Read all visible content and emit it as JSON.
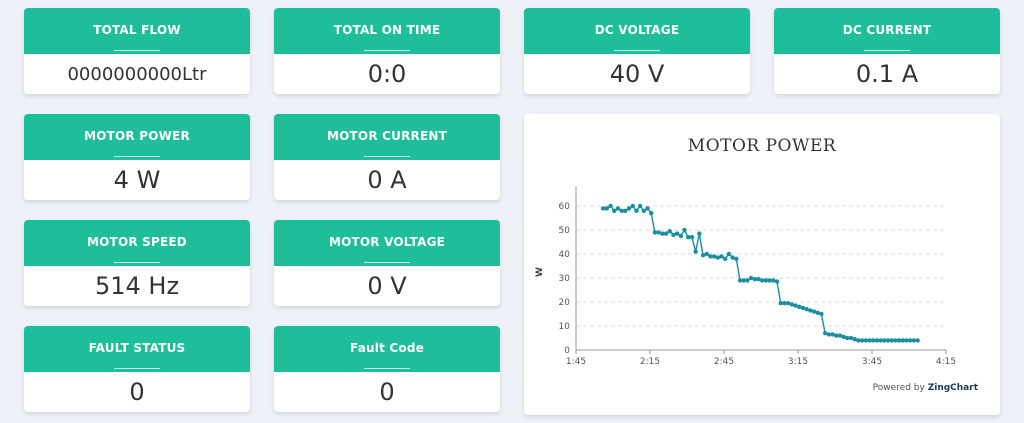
{
  "cards": [
    {
      "title": "TOTAL FLOW",
      "value": "0000000000Ltr"
    },
    {
      "title": "TOTAL ON TIME",
      "value": "0:0"
    },
    {
      "title": "DC VOLTAGE",
      "value": "40 V"
    },
    {
      "title": "DC CURRENT",
      "value": "0.1 A"
    },
    {
      "title": "MOTOR POWER",
      "value": "4 W"
    },
    {
      "title": "MOTOR CURRENT",
      "value": "0 A"
    },
    {
      "title": "MOTOR SPEED",
      "value": "514 Hz"
    },
    {
      "title": "MOTOR VOLTAGE",
      "value": "0 V"
    },
    {
      "title": "FAULT STATUS",
      "value": "0"
    },
    {
      "title": "Fault Code",
      "value": "0"
    }
  ],
  "chart": {
    "title": "MOTOR POWER",
    "powered_by": "Powered by",
    "powered_brand": "ZingChart"
  },
  "colors": {
    "accent": "#1fbe9a",
    "series": "#1a8ea0"
  },
  "chart_data": {
    "type": "line",
    "title": "MOTOR POWER",
    "ylabel": "W",
    "xlabel": "",
    "x_tick_labels": [
      "1:45",
      "2:15",
      "2:45",
      "3:15",
      "3:45",
      "4:15"
    ],
    "x_ticks_minutes": [
      105,
      135,
      165,
      195,
      225,
      255
    ],
    "xlim_minutes": [
      105,
      255
    ],
    "y_ticks": [
      0,
      10,
      20,
      30,
      40,
      50,
      60
    ],
    "ylim": [
      0,
      65
    ],
    "grid": true,
    "series": [
      {
        "x_minutes": [
          116,
          117.5,
          119,
          120.5,
          122,
          123.5,
          125,
          126.5,
          128,
          129.5,
          131,
          132.5,
          134,
          135.5,
          137,
          138.5,
          140,
          141.5,
          143,
          144.5,
          146,
          147.5,
          149,
          150.5,
          152,
          153.5,
          155,
          156.5,
          158,
          159.5,
          161,
          162.5,
          164,
          165.5,
          167,
          168.5,
          170,
          171.5,
          173,
          174.5,
          176,
          177.5,
          179,
          180.5,
          182,
          183.5,
          185,
          186.5,
          188,
          189.5,
          191,
          192.5,
          194,
          195.5,
          197,
          198.5,
          200,
          201.5,
          203,
          204.5,
          206,
          207.5,
          209,
          210.5,
          212,
          213.5,
          215,
          216.5,
          218,
          219.5,
          221,
          222.5,
          224,
          225.5,
          227,
          228.5,
          230,
          231.5,
          233,
          234.5,
          236,
          237.5,
          239,
          240.5,
          242,
          243.5
        ],
        "values": [
          59,
          59,
          60,
          58,
          59,
          58,
          58,
          59,
          60,
          58,
          60,
          58,
          59,
          57,
          49,
          49,
          48.5,
          48.5,
          49.5,
          48,
          48.5,
          47.5,
          50,
          47,
          47,
          41,
          48.5,
          39.5,
          40,
          39,
          39,
          38.5,
          39,
          38,
          40,
          38.5,
          38,
          29,
          29,
          29,
          30,
          29.5,
          29.5,
          29,
          29,
          29,
          29,
          28.5,
          19.5,
          19.5,
          19.5,
          19,
          18.5,
          18,
          17.5,
          17,
          16.5,
          16,
          15.5,
          15,
          7,
          6.5,
          6.5,
          6,
          6,
          5.5,
          5,
          5,
          4.5,
          4,
          4,
          4,
          4,
          4,
          4,
          4,
          4,
          4,
          4,
          4,
          4,
          4,
          4,
          4,
          4,
          4
        ]
      }
    ]
  }
}
